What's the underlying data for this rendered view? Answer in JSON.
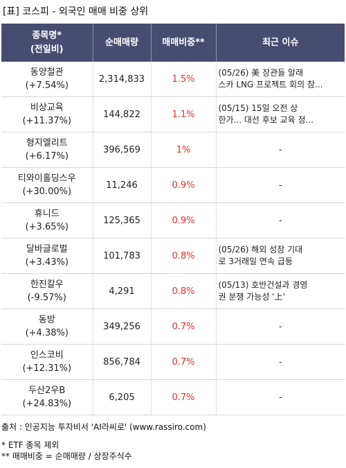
{
  "title": "[표] 코스피 - 외국인 매매 비중 상위",
  "headers": {
    "name": "종목명*\n(전일비)",
    "qty": "순매매량",
    "ratio": "매매비중**",
    "issue": "최근 이슈"
  },
  "rows": [
    {
      "name": "동양철관",
      "change": "(+7.54%)",
      "qty": "2,314,833",
      "ratio": "1.5%",
      "issue": "(05/26) 美 장관들 알래\n스카 LNG 프로젝트 회의 참..."
    },
    {
      "name": "비상교육",
      "change": "(+11.37%)",
      "qty": "144,822",
      "ratio": "1.1%",
      "issue": "(05/15) 15일 오전 상\n한가... 대선 후보 교육 정..."
    },
    {
      "name": "형지엘리트",
      "change": "(+6.17%)",
      "qty": "396,569",
      "ratio": "1%",
      "issue": "-"
    },
    {
      "name": "티와이홀딩스우",
      "change": "(+30.00%)",
      "qty": "11,246",
      "ratio": "0.9%",
      "issue": "-"
    },
    {
      "name": "휴니드",
      "change": "(+3.65%)",
      "qty": "125,365",
      "ratio": "0.9%",
      "issue": "-"
    },
    {
      "name": "달바글로벌",
      "change": "(+3.43%)",
      "qty": "101,783",
      "ratio": "0.8%",
      "issue": "(05/26) 해외 성장 기대\n로 3거래일 연속 급등"
    },
    {
      "name": "한진칼우",
      "change": "(-9.57%)",
      "qty": "4,291",
      "ratio": "0.8%",
      "issue": "(05/13) 호반건설과 경영\n권 분쟁 가능성 '上'"
    },
    {
      "name": "동방",
      "change": "(+4.38%)",
      "qty": "349,256",
      "ratio": "0.7%",
      "issue": "-"
    },
    {
      "name": "인스코비",
      "change": "(+12.31%)",
      "qty": "856,784",
      "ratio": "0.7%",
      "issue": "-"
    },
    {
      "name": "두산2우B",
      "change": "(+24.83%)",
      "qty": "6,205",
      "ratio": "0.7%",
      "issue": "-"
    }
  ],
  "footer": {
    "source": "출처 : 인공지능 투자비서 'AI라씨로' (www.rassiro.com)",
    "note1": "* ETF 종목 제외",
    "note2": "** 매매비중 = 순매매량 / 상장주식수"
  },
  "colors": {
    "header_bg": "#474d70",
    "ratio_text": "#e0302a"
  }
}
